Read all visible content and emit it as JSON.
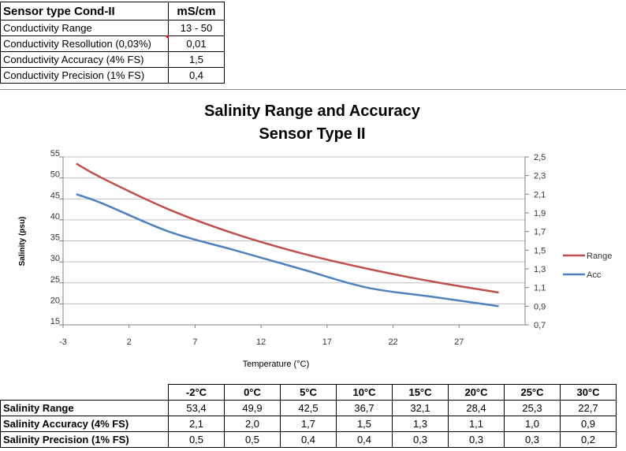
{
  "spec_table": {
    "title": "Sensor type Cond-II",
    "unit": "mS/cm",
    "rows": [
      {
        "label": "Conductivity Range",
        "value": "13 - 50"
      },
      {
        "label": "Conductivity Resollution (0,03%)",
        "value": "0,01"
      },
      {
        "label": "Conductivity Accuracy   (4% FS)",
        "value": "1,5"
      },
      {
        "label": "Conductivity Precision   (1% FS)",
        "value": "0,4"
      }
    ]
  },
  "chart_data": {
    "type": "line",
    "title": "Salinity Range and Accuracy",
    "subtitle": "Sensor Type II",
    "xlabel": "Temperature (°C)",
    "ylabel": "Salinity (psu)",
    "xlim": [
      -3,
      32
    ],
    "xticks": [
      "-3",
      "2",
      "7",
      "12",
      "17",
      "22",
      "27"
    ],
    "ylim": [
      15,
      55
    ],
    "yticks": [
      "15",
      "20",
      "25",
      "30",
      "35",
      "40",
      "45",
      "50",
      "55"
    ],
    "y2lim": [
      0.7,
      2.5
    ],
    "y2ticks": [
      "0,7",
      "0,9",
      "1,1",
      "1,3",
      "1,5",
      "1,7",
      "1,9",
      "2,1",
      "2,3",
      "2,5"
    ],
    "grid": true,
    "legend": "right",
    "x": [
      -2,
      0,
      5,
      10,
      15,
      20,
      25,
      30
    ],
    "series": [
      {
        "name": "Range",
        "axis": "left",
        "color": "#c0504d",
        "values": [
          53.4,
          49.9,
          42.5,
          36.7,
          32.1,
          28.4,
          25.3,
          22.7
        ]
      },
      {
        "name": "Acc",
        "axis": "right",
        "color": "#4f81bd",
        "values": [
          2.1,
          2.0,
          1.7,
          1.5,
          1.3,
          1.1,
          1.0,
          0.9
        ]
      }
    ]
  },
  "data_table": {
    "headers": [
      "-2°C",
      "0°C",
      "5°C",
      "10°C",
      "15°C",
      "20°C",
      "25°C",
      "30°C"
    ],
    "rows": [
      {
        "label": "Salinity Range",
        "values": [
          "53,4",
          "49,9",
          "42,5",
          "36,7",
          "32,1",
          "28,4",
          "25,3",
          "22,7"
        ]
      },
      {
        "label": "Salinity Accuracy  (4% FS)",
        "values": [
          "2,1",
          "2,0",
          "1,7",
          "1,5",
          "1,3",
          "1,1",
          "1,0",
          "0,9"
        ]
      },
      {
        "label": "Salinity Precision (1% FS)",
        "values": [
          "0,5",
          "0,5",
          "0,4",
          "0,4",
          "0,3",
          "0,3",
          "0,3",
          "0,2"
        ]
      }
    ]
  }
}
